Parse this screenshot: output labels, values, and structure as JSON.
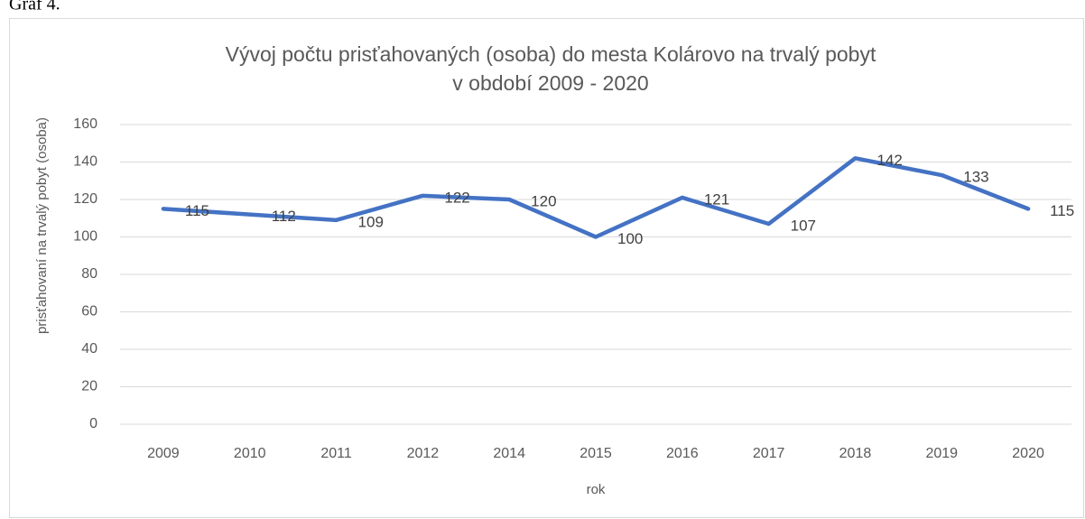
{
  "caption": "Graf 4.",
  "chart_data": {
    "type": "line",
    "title": "Vývoj počtu prisťahovaných (osoba) do mesta Kolárovo na trvalý pobyt",
    "subtitle": "v období 2009 - 2020",
    "x_label": "rok",
    "y_label": "prisťahovaní na trvalý pobyt (osoba)",
    "categories": [
      "2009",
      "2010",
      "2011",
      "2012",
      "2014",
      "2015",
      "2016",
      "2017",
      "2018",
      "2019",
      "2020"
    ],
    "values": [
      115,
      112,
      109,
      122,
      120,
      100,
      121,
      107,
      142,
      133,
      115
    ],
    "color": "#4472c4",
    "ylim": [
      0,
      160
    ],
    "yticks": [
      0,
      20,
      40,
      60,
      80,
      100,
      120,
      140,
      160
    ],
    "grid": true
  }
}
